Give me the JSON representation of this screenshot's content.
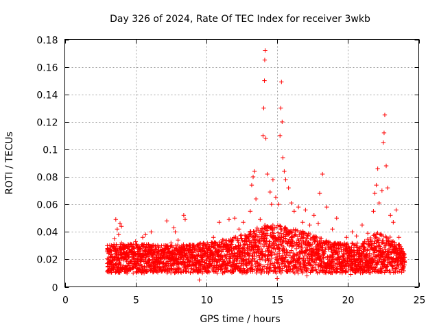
{
  "chart_data": {
    "type": "scatter",
    "title": "Day 326 of 2024, Rate Of TEC Index for receiver 3wkb",
    "xlabel": "GPS time / hours",
    "ylabel": "ROTI / TECUs",
    "xlim": [
      0,
      25
    ],
    "ylim": [
      0,
      0.18
    ],
    "x_ticks": [
      0,
      5,
      10,
      15,
      20,
      25
    ],
    "x_tick_labels": [
      "0",
      "5",
      "10",
      "15",
      "20",
      "25"
    ],
    "y_ticks": [
      0,
      0.02,
      0.04,
      0.06,
      0.08,
      0.1,
      0.12,
      0.14,
      0.16,
      0.18
    ],
    "y_tick_labels": [
      "0",
      "0.02",
      "0.04",
      "0.06",
      "0.08",
      "0.1",
      "0.12",
      "0.14",
      "0.16",
      "0.18"
    ],
    "grid": true,
    "marker": "+",
    "color": "#ff0000",
    "series": [
      {
        "name": "ROTI",
        "points": [
          [
            3.0,
            0.03
          ],
          [
            3.0,
            0.017
          ],
          [
            3.1,
            0.012
          ],
          [
            3.2,
            0.022
          ],
          [
            3.4,
            0.019
          ],
          [
            3.5,
            0.035
          ],
          [
            3.6,
            0.049
          ],
          [
            3.6,
            0.027
          ],
          [
            3.7,
            0.042
          ],
          [
            3.8,
            0.038
          ],
          [
            3.9,
            0.046
          ],
          [
            4.0,
            0.044
          ],
          [
            4.1,
            0.031
          ],
          [
            4.2,
            0.021
          ],
          [
            4.4,
            0.025
          ],
          [
            4.6,
            0.018
          ],
          [
            4.8,
            0.029
          ],
          [
            5.0,
            0.033
          ],
          [
            5.2,
            0.022
          ],
          [
            5.5,
            0.036
          ],
          [
            5.7,
            0.038
          ],
          [
            5.9,
            0.031
          ],
          [
            6.1,
            0.04
          ],
          [
            6.3,
            0.027
          ],
          [
            6.5,
            0.02
          ],
          [
            6.8,
            0.026
          ],
          [
            7.0,
            0.015
          ],
          [
            7.2,
            0.048
          ],
          [
            7.5,
            0.032
          ],
          [
            7.7,
            0.043
          ],
          [
            7.8,
            0.04
          ],
          [
            8.0,
            0.034
          ],
          [
            8.2,
            0.026
          ],
          [
            8.4,
            0.052
          ],
          [
            8.5,
            0.049
          ],
          [
            8.6,
            0.03
          ],
          [
            9.0,
            0.023
          ],
          [
            9.4,
            0.019
          ],
          [
            9.8,
            0.028
          ],
          [
            10.1,
            0.021
          ],
          [
            10.5,
            0.036
          ],
          [
            10.9,
            0.047
          ],
          [
            11.3,
            0.031
          ],
          [
            11.6,
            0.049
          ],
          [
            12.0,
            0.05
          ],
          [
            12.3,
            0.042
          ],
          [
            12.6,
            0.047
          ],
          [
            12.9,
            0.036
          ],
          [
            13.1,
            0.055
          ],
          [
            13.2,
            0.074
          ],
          [
            13.3,
            0.08
          ],
          [
            13.4,
            0.084
          ],
          [
            13.5,
            0.064
          ],
          [
            13.8,
            0.049
          ],
          [
            14.0,
            0.11
          ],
          [
            14.05,
            0.13
          ],
          [
            14.1,
            0.15
          ],
          [
            14.12,
            0.165
          ],
          [
            14.15,
            0.172
          ],
          [
            14.2,
            0.108
          ],
          [
            14.3,
            0.082
          ],
          [
            14.5,
            0.069
          ],
          [
            14.6,
            0.06
          ],
          [
            14.7,
            0.078
          ],
          [
            14.9,
            0.065
          ],
          [
            15.1,
            0.06
          ],
          [
            15.2,
            0.11
          ],
          [
            15.25,
            0.13
          ],
          [
            15.3,
            0.149
          ],
          [
            15.35,
            0.12
          ],
          [
            15.4,
            0.094
          ],
          [
            15.5,
            0.084
          ],
          [
            15.6,
            0.078
          ],
          [
            15.8,
            0.072
          ],
          [
            16.0,
            0.061
          ],
          [
            16.2,
            0.055
          ],
          [
            16.5,
            0.058
          ],
          [
            16.8,
            0.047
          ],
          [
            17.0,
            0.056
          ],
          [
            17.3,
            0.045
          ],
          [
            17.6,
            0.052
          ],
          [
            17.9,
            0.046
          ],
          [
            18.0,
            0.068
          ],
          [
            18.2,
            0.082
          ],
          [
            18.5,
            0.058
          ],
          [
            18.9,
            0.042
          ],
          [
            19.2,
            0.05
          ],
          [
            19.5,
            0.031
          ],
          [
            19.9,
            0.036
          ],
          [
            20.3,
            0.04
          ],
          [
            20.6,
            0.037
          ],
          [
            21.0,
            0.045
          ],
          [
            21.4,
            0.039
          ],
          [
            21.8,
            0.055
          ],
          [
            21.9,
            0.068
          ],
          [
            22.0,
            0.074
          ],
          [
            22.1,
            0.086
          ],
          [
            22.2,
            0.061
          ],
          [
            22.4,
            0.07
          ],
          [
            22.5,
            0.105
          ],
          [
            22.55,
            0.112
          ],
          [
            22.6,
            0.125
          ],
          [
            22.7,
            0.088
          ],
          [
            22.8,
            0.072
          ],
          [
            23.0,
            0.052
          ],
          [
            23.2,
            0.047
          ],
          [
            23.4,
            0.056
          ],
          [
            23.6,
            0.036
          ],
          [
            23.9,
            0.024
          ],
          [
            24.0,
            0.018
          ],
          [
            12.7,
            0.012
          ],
          [
            15.0,
            0.006
          ],
          [
            9.5,
            0.005
          ],
          [
            5.6,
            0.01
          ],
          [
            20.2,
            0.009
          ],
          [
            17.1,
            0.008
          ],
          [
            22.3,
            0.011
          ]
        ],
        "band": {
          "description": "dense continuous cluster of points",
          "x_start": 3.0,
          "x_end": 24.0,
          "lower": [
            [
              3,
              0.01
            ],
            [
              7,
              0.01
            ],
            [
              10,
              0.01
            ],
            [
              14,
              0.01
            ],
            [
              17,
              0.01
            ],
            [
              21,
              0.01
            ],
            [
              24,
              0.01
            ]
          ],
          "upper": [
            [
              3,
              0.03
            ],
            [
              4,
              0.032
            ],
            [
              7,
              0.03
            ],
            [
              10,
              0.032
            ],
            [
              12,
              0.036
            ],
            [
              14,
              0.045
            ],
            [
              15,
              0.045
            ],
            [
              17,
              0.04
            ],
            [
              19,
              0.032
            ],
            [
              21,
              0.032
            ],
            [
              22,
              0.04
            ],
            [
              23,
              0.036
            ],
            [
              24,
              0.028
            ]
          ]
        }
      }
    ]
  }
}
